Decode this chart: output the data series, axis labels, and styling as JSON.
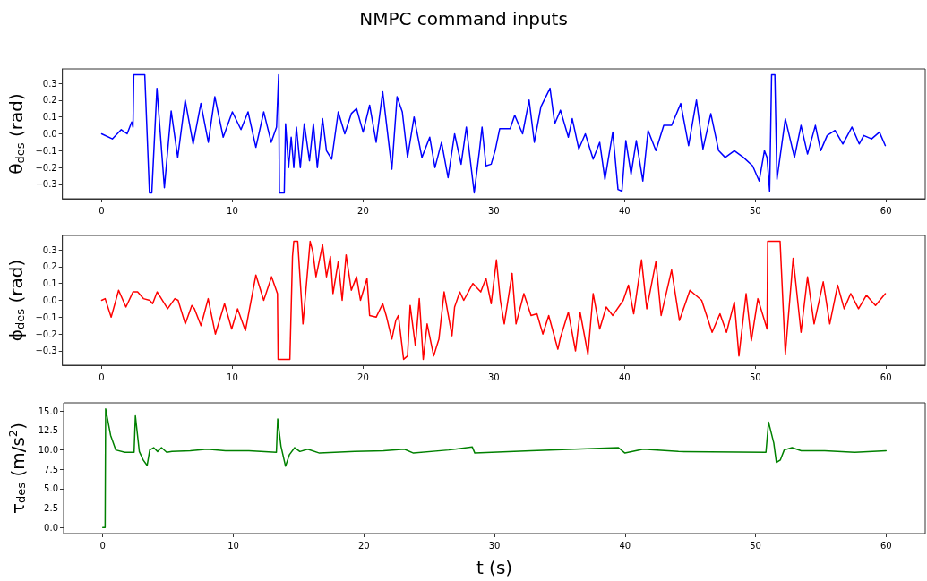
{
  "chart_data": [
    {
      "type": "line",
      "title": "NMPC command inputs",
      "ylabel": "θ$_{des}$ (rad)",
      "xlim": [
        -3,
        63
      ],
      "ylim": [
        -0.385,
        0.385
      ],
      "xticks": [
        0,
        10,
        20,
        30,
        40,
        50,
        60
      ],
      "yticks": [
        {
          "value": -0.3,
          "label": "−0.3"
        },
        {
          "value": -0.2,
          "label": "−0.2"
        },
        {
          "value": -0.1,
          "label": "−0.1"
        },
        {
          "value": 0,
          "label": "0.0"
        },
        0.1,
        0.2,
        0.3
      ],
      "x": [
        0,
        0.82,
        1.5,
        1.95,
        2.3,
        2.4,
        2.46,
        3.3,
        3.66,
        3.84,
        4.23,
        4.8,
        5.32,
        5.82,
        6.39,
        7.0,
        7.59,
        8.16,
        8.66,
        9.3,
        10.0,
        10.66,
        11.2,
        11.8,
        12.4,
        12.97,
        13.38,
        13.54,
        13.6,
        13.97,
        14.07,
        14.3,
        14.5,
        14.7,
        14.9,
        15.2,
        15.5,
        15.9,
        16.2,
        16.5,
        16.9,
        17.2,
        17.6,
        18.1,
        18.6,
        19.1,
        19.5,
        20.0,
        20.5,
        21.0,
        21.5,
        22.2,
        22.6,
        23.0,
        23.4,
        23.9,
        24.5,
        25.1,
        25.5,
        26.0,
        26.5,
        27.0,
        27.5,
        27.9,
        28.5,
        28.9,
        29.1,
        29.4,
        29.8,
        30.1,
        30.45,
        31.25,
        31.6,
        32.2,
        32.7,
        33.1,
        33.6,
        34.3,
        34.66,
        35.1,
        35.7,
        36.0,
        36.5,
        37.0,
        37.6,
        38.1,
        38.5,
        39.1,
        39.5,
        39.8,
        40.1,
        40.5,
        40.9,
        41.4,
        41.8,
        42.4,
        43.0,
        43.6,
        44.3,
        44.9,
        45.5,
        46.0,
        46.6,
        47.2,
        47.7,
        48.4,
        49.1,
        49.8,
        50.3,
        50.7,
        50.9,
        51.1,
        51.25,
        51.5,
        51.66,
        52.3,
        53.0,
        53.5,
        54.0,
        54.6,
        55.0,
        55.5,
        56.1,
        56.7,
        57.4,
        57.95,
        58.3,
        58.9,
        59.5,
        59.95
      ],
      "series": [
        {
          "color": "#0000ff",
          "values": [
            0,
            -0.03,
            0.025,
            0,
            0.07,
            0.04,
            0.35,
            0.35,
            -0.35,
            -0.35,
            0.27,
            -0.32,
            0.135,
            -0.14,
            0.2,
            -0.06,
            0.18,
            -0.05,
            0.22,
            -0.02,
            0.13,
            0.025,
            0.13,
            -0.08,
            0.13,
            -0.05,
            0.04,
            0.35,
            -0.35,
            -0.35,
            0.06,
            -0.2,
            -0.02,
            -0.2,
            0.04,
            -0.2,
            0.06,
            -0.16,
            0.06,
            -0.2,
            0.09,
            -0.1,
            -0.15,
            0.13,
            0,
            0.12,
            0.15,
            0.01,
            0.17,
            -0.05,
            0.25,
            -0.21,
            0.22,
            0.13,
            -0.14,
            0.1,
            -0.14,
            -0.02,
            -0.2,
            -0.05,
            -0.26,
            0,
            -0.18,
            0.04,
            -0.35,
            -0.1,
            0.04,
            -0.19,
            -0.18,
            -0.1,
            0.03,
            0.03,
            0.11,
            0,
            0.2,
            -0.05,
            0.16,
            0.27,
            0.06,
            0.14,
            -0.02,
            0.09,
            -0.09,
            0,
            -0.15,
            -0.05,
            -0.27,
            0.01,
            -0.33,
            -0.34,
            -0.04,
            -0.24,
            -0.04,
            -0.28,
            0.02,
            -0.1,
            0.05,
            0.05,
            0.18,
            -0.07,
            0.2,
            -0.09,
            0.12,
            -0.1,
            -0.14,
            -0.1,
            -0.14,
            -0.19,
            -0.28,
            -0.1,
            -0.14,
            -0.34,
            0.35,
            0.35,
            -0.27,
            0.09,
            -0.14,
            0.05,
            -0.12,
            0.05,
            -0.1,
            -0.01,
            0.02,
            -0.06,
            0.04,
            -0.06,
            -0.01,
            -0.03,
            0.01,
            -0.07
          ]
        }
      ]
    },
    {
      "type": "line",
      "ylabel": "ϕ$_{des}$ (rad)",
      "xlim": [
        -3,
        63
      ],
      "ylim": [
        -0.385,
        0.385
      ],
      "xticks": [
        0,
        10,
        20,
        30,
        40,
        50,
        60
      ],
      "yticks": [
        {
          "value": -0.3,
          "label": "−0.3"
        },
        {
          "value": -0.2,
          "label": "−0.2"
        },
        {
          "value": -0.1,
          "label": "−0.1"
        },
        {
          "value": 0,
          "label": "0.0"
        },
        0.1,
        0.2,
        0.3
      ],
      "x": [
        0,
        0.27,
        0.73,
        1.3,
        1.86,
        2.4,
        2.75,
        3.2,
        3.68,
        3.9,
        4.25,
        5.05,
        5.6,
        5.85,
        6.4,
        6.9,
        7.1,
        7.6,
        8.15,
        8.7,
        9.4,
        9.95,
        10.4,
        11.0,
        11.8,
        12.4,
        13.0,
        13.45,
        13.5,
        14.4,
        14.6,
        14.7,
        15.0,
        15.4,
        15.95,
        16.15,
        16.4,
        16.9,
        17.2,
        17.5,
        17.7,
        18.1,
        18.4,
        18.7,
        19.1,
        19.5,
        19.8,
        20.3,
        20.5,
        21.0,
        21.5,
        21.8,
        22.2,
        22.5,
        22.7,
        23.1,
        23.4,
        23.6,
        24.0,
        24.3,
        24.6,
        24.9,
        25.4,
        25.8,
        26.2,
        26.8,
        27.0,
        27.4,
        27.7,
        28.4,
        29.0,
        29.4,
        29.8,
        30.2,
        30.5,
        30.8,
        31.4,
        31.7,
        32.3,
        32.85,
        33.3,
        33.75,
        34.2,
        34.9,
        35.1,
        35.7,
        36.25,
        36.6,
        37.2,
        37.6,
        38.1,
        38.6,
        39.1,
        39.9,
        40.3,
        40.7,
        41.3,
        41.7,
        42.4,
        42.8,
        43.6,
        44.2,
        45.0,
        45.9,
        46.7,
        47.3,
        47.8,
        48.4,
        48.75,
        49.3,
        49.7,
        50.2,
        50.9,
        50.95,
        51.9,
        52.3,
        52.9,
        53.5,
        54.0,
        54.5,
        55.2,
        55.7,
        56.3,
        56.8,
        57.3,
        57.9,
        58.5,
        59.2,
        59.95
      ],
      "series": [
        {
          "color": "#ff0000",
          "values": [
            0,
            0.01,
            -0.1,
            0.06,
            -0.04,
            0.05,
            0.05,
            0.01,
            0,
            -0.02,
            0.05,
            -0.05,
            0.01,
            0,
            -0.14,
            -0.03,
            -0.05,
            -0.15,
            0.01,
            -0.2,
            -0.02,
            -0.17,
            -0.05,
            -0.18,
            0.15,
            0,
            0.14,
            0.04,
            -0.35,
            -0.35,
            0.26,
            0.35,
            0.35,
            -0.14,
            0.35,
            0.29,
            0.14,
            0.33,
            0.14,
            0.26,
            0.04,
            0.23,
            0,
            0.27,
            0.06,
            0.14,
            0,
            0.13,
            -0.09,
            -0.1,
            -0.02,
            -0.1,
            -0.23,
            -0.12,
            -0.09,
            -0.35,
            -0.33,
            -0.03,
            -0.27,
            0.01,
            -0.35,
            -0.14,
            -0.33,
            -0.23,
            0.05,
            -0.21,
            -0.04,
            0.05,
            0,
            0.1,
            0.05,
            0.13,
            -0.02,
            0.24,
            0,
            -0.14,
            0.16,
            -0.14,
            0.04,
            -0.09,
            -0.08,
            -0.2,
            -0.09,
            -0.29,
            -0.22,
            -0.07,
            -0.3,
            -0.07,
            -0.32,
            0.04,
            -0.17,
            -0.04,
            -0.09,
            0,
            0.09,
            -0.08,
            0.24,
            -0.05,
            0.23,
            -0.09,
            0.18,
            -0.12,
            0.06,
            0,
            -0.19,
            -0.08,
            -0.19,
            -0.01,
            -0.33,
            0.04,
            -0.24,
            0.01,
            -0.17,
            0.35,
            0.35,
            -0.32,
            0.25,
            -0.19,
            0.14,
            -0.14,
            0.11,
            -0.14,
            0.09,
            -0.05,
            0.04,
            -0.05,
            0.03,
            -0.03,
            0.04
          ]
        }
      ]
    },
    {
      "type": "line",
      "ylabel": "τ$_{des}$ (m/s$^{2}$)",
      "xlabel": "t (s)",
      "xlim": [
        -3,
        63
      ],
      "ylim": [
        -0.77,
        16.07
      ],
      "xticks": [
        0,
        10,
        20,
        30,
        40,
        50,
        60
      ],
      "yticks": [
        {
          "value": 0,
          "label": "0.0"
        },
        2.5,
        {
          "value": 5,
          "label": "5.0"
        },
        7.5,
        {
          "value": 10,
          "label": "10.0"
        },
        12.5,
        {
          "value": 15,
          "label": "15.0"
        }
      ],
      "x": [
        0,
        0.18,
        0.22,
        0.6,
        1.0,
        1.7,
        2.4,
        2.5,
        2.8,
        3.1,
        3.4,
        3.6,
        3.9,
        4.2,
        4.5,
        4.9,
        5.3,
        6.7,
        8.0,
        9.4,
        11.2,
        13.3,
        13.4,
        13.65,
        14.0,
        14.3,
        14.7,
        15.1,
        15.7,
        16.6,
        19.3,
        21.5,
        23.1,
        23.8,
        26.5,
        28.3,
        28.5,
        32.8,
        39.5,
        40.0,
        41.4,
        44.1,
        50.8,
        51.0,
        51.4,
        51.6,
        51.9,
        52.2,
        52.8,
        53.5,
        55.3,
        57.6,
        60
      ],
      "series": [
        {
          "color": "#008000",
          "values": [
            0,
            0,
            15.3,
            11.9,
            10.0,
            9.7,
            9.7,
            14.4,
            9.8,
            8.7,
            8.0,
            10.0,
            10.3,
            9.8,
            10.3,
            9.7,
            9.8,
            9.9,
            10.1,
            9.9,
            9.9,
            9.7,
            14.0,
            10.5,
            7.9,
            9.4,
            10.3,
            9.8,
            10.1,
            9.6,
            9.8,
            9.9,
            10.1,
            9.6,
            10.0,
            10.4,
            9.6,
            9.9,
            10.3,
            9.6,
            10.1,
            9.8,
            9.7,
            13.6,
            10.9,
            8.4,
            8.7,
            10.0,
            10.3,
            9.9,
            9.9,
            9.7,
            9.9
          ]
        }
      ]
    }
  ]
}
